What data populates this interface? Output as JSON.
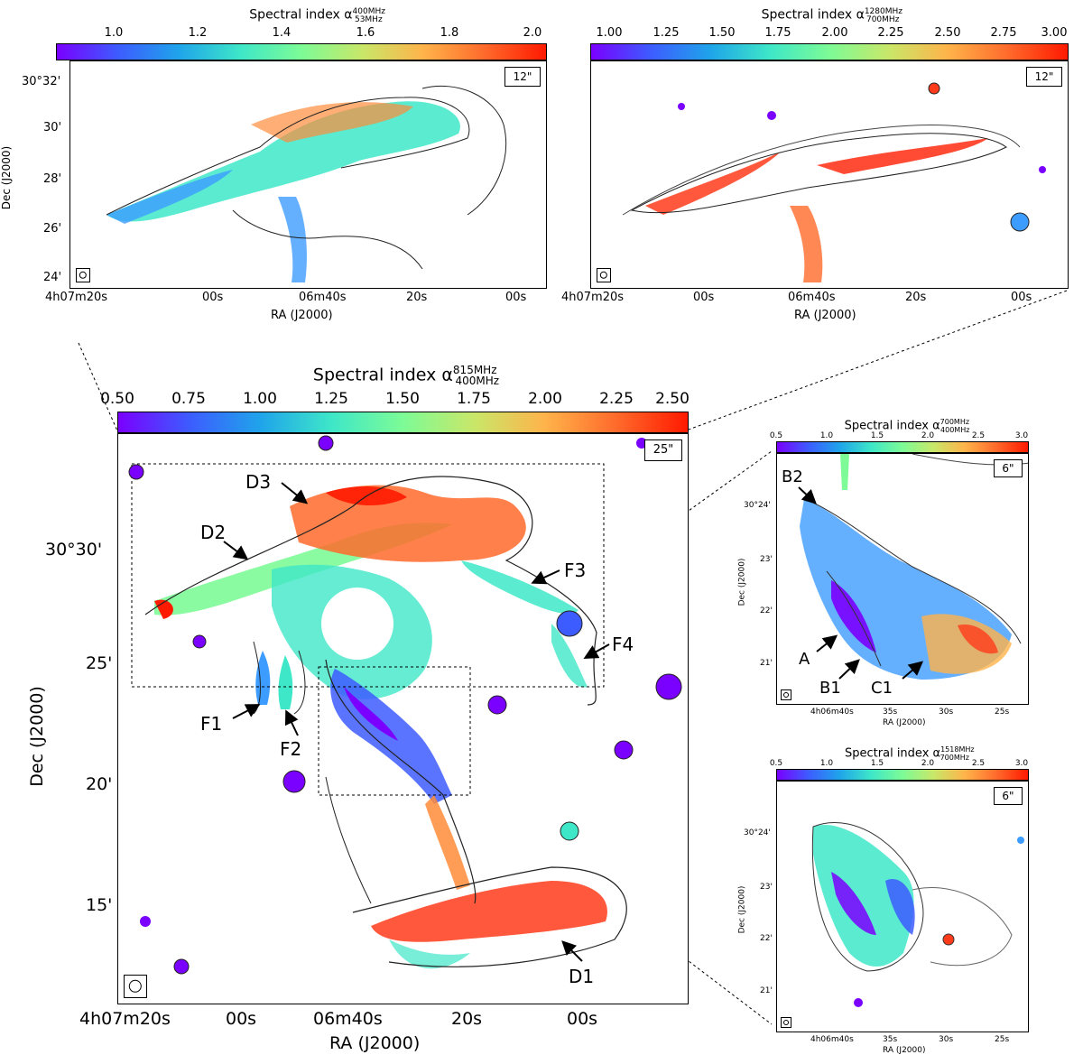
{
  "panels": {
    "top_left": {
      "colorbar_title": "Spectral index α",
      "sup": "400MHz",
      "sub": "53MHz",
      "ticks": [
        "1.0",
        "1.2",
        "1.4",
        "1.6",
        "1.8",
        "2.0"
      ],
      "beam": "12\"",
      "dec_ticks": [
        "30°32'",
        "30'",
        "28'",
        "26'",
        "24'"
      ],
      "ra_ticks": [
        "4h07m20s",
        "00s",
        "06m40s",
        "20s",
        "00s"
      ],
      "xlabel": "RA (J2000)",
      "ylabel": "Dec (J2000)"
    },
    "top_right": {
      "colorbar_title": "Spectral index α",
      "sup": "1280MHz",
      "sub": "700MHz",
      "ticks": [
        "1.00",
        "1.25",
        "1.50",
        "1.75",
        "2.00",
        "2.25",
        "2.50",
        "2.75",
        "3.00"
      ],
      "beam": "12\"",
      "ra_ticks": [
        "4h07m20s",
        "00s",
        "06m40s",
        "20s",
        "00s"
      ],
      "xlabel": "RA (J2000)"
    },
    "main": {
      "colorbar_title": "Spectral index α",
      "sup": "815MHz",
      "sub": "400MHz",
      "ticks": [
        "0.50",
        "0.75",
        "1.00",
        "1.25",
        "1.50",
        "1.75",
        "2.00",
        "2.25",
        "2.50"
      ],
      "beam": "25\"",
      "dec_ticks": [
        "30°30'",
        "25'",
        "20'",
        "15'"
      ],
      "ra_ticks": [
        "4h07m20s",
        "00s",
        "06m40s",
        "20s",
        "00s"
      ],
      "xlabel": "RA (J2000)",
      "ylabel": "Dec (J2000)",
      "labels": [
        "D3",
        "D2",
        "F3",
        "F4",
        "F1",
        "F2",
        "D1"
      ]
    },
    "mid_right": {
      "colorbar_title": "Spectral index α",
      "sup": "700MHz",
      "sub": "400MHz",
      "ticks": [
        "0.5",
        "1.0",
        "1.5",
        "2.0",
        "2.5",
        "3.0"
      ],
      "beam": "6\"",
      "dec_ticks": [
        "30°24'",
        "23'",
        "22'",
        "21'"
      ],
      "ra_ticks": [
        "4h06m40s",
        "35s",
        "30s",
        "25s"
      ],
      "xlabel": "RA (J2000)",
      "ylabel": "Dec (J2000)",
      "labels": [
        "B2",
        "A",
        "B1",
        "C1"
      ]
    },
    "bottom_right": {
      "colorbar_title": "Spectral index α",
      "sup": "1518MHz",
      "sub": "700MHz",
      "ticks": [
        "0.5",
        "1.0",
        "1.5",
        "2.0",
        "2.5",
        "3.0"
      ],
      "beam": "6\"",
      "dec_ticks": [
        "30°24'",
        "23'",
        "22'",
        "21'"
      ],
      "ra_ticks": [
        "4h06m40s",
        "35s",
        "30s",
        "25s"
      ],
      "xlabel": "RA (J2000)",
      "ylabel": "Dec (J2000)"
    }
  }
}
